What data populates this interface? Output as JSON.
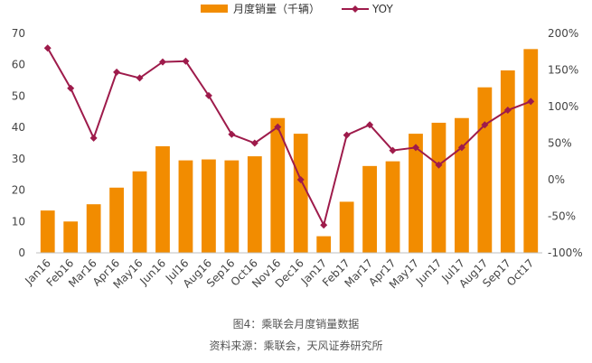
{
  "chart_data": {
    "type": "bar",
    "categories": [
      "Jan16",
      "Feb16",
      "Mar16",
      "Apr16",
      "May16",
      "Jun16",
      "Jul16",
      "Aug16",
      "Sep16",
      "Oct16",
      "Nov16",
      "Dec16",
      "Jan17",
      "Feb17",
      "Mar17",
      "Apr17",
      "May17",
      "Jun17",
      "Jul17",
      "Aug17",
      "Sep17",
      "Oct17"
    ],
    "series": [
      {
        "name": "月度销量（千辆）",
        "kind": "bar",
        "axis": "left",
        "color": "#F28C00",
        "values": [
          13.5,
          10,
          15.5,
          20.8,
          26,
          34,
          29.5,
          29.8,
          29.5,
          30.8,
          43,
          38,
          5.3,
          16.3,
          27.7,
          29.2,
          38,
          41.5,
          43,
          52.8,
          58.2,
          65
        ]
      },
      {
        "name": "YOY",
        "kind": "line",
        "axis": "right",
        "color": "#9E1B4B",
        "values": [
          180,
          125,
          57,
          147,
          139,
          161,
          162,
          115,
          62,
          50,
          72,
          0,
          -62,
          61,
          75,
          40,
          44,
          20,
          44,
          75,
          95,
          107
        ]
      }
    ],
    "y_left": {
      "min": 0,
      "max": 70,
      "step": 10,
      "ticks": [
        "0",
        "10",
        "20",
        "30",
        "40",
        "50",
        "60",
        "70"
      ]
    },
    "y_right": {
      "min": -100,
      "max": 200,
      "step": 50,
      "ticks": [
        "-100%",
        "-50%",
        "0%",
        "50%",
        "100%",
        "150%",
        "200%"
      ]
    },
    "legend": {
      "placement": "top-center"
    },
    "grid": false
  },
  "captions": {
    "figure_title": "图4：乘联会月度销量数据",
    "source": "资料来源：乘联会，天风证券研究所"
  }
}
